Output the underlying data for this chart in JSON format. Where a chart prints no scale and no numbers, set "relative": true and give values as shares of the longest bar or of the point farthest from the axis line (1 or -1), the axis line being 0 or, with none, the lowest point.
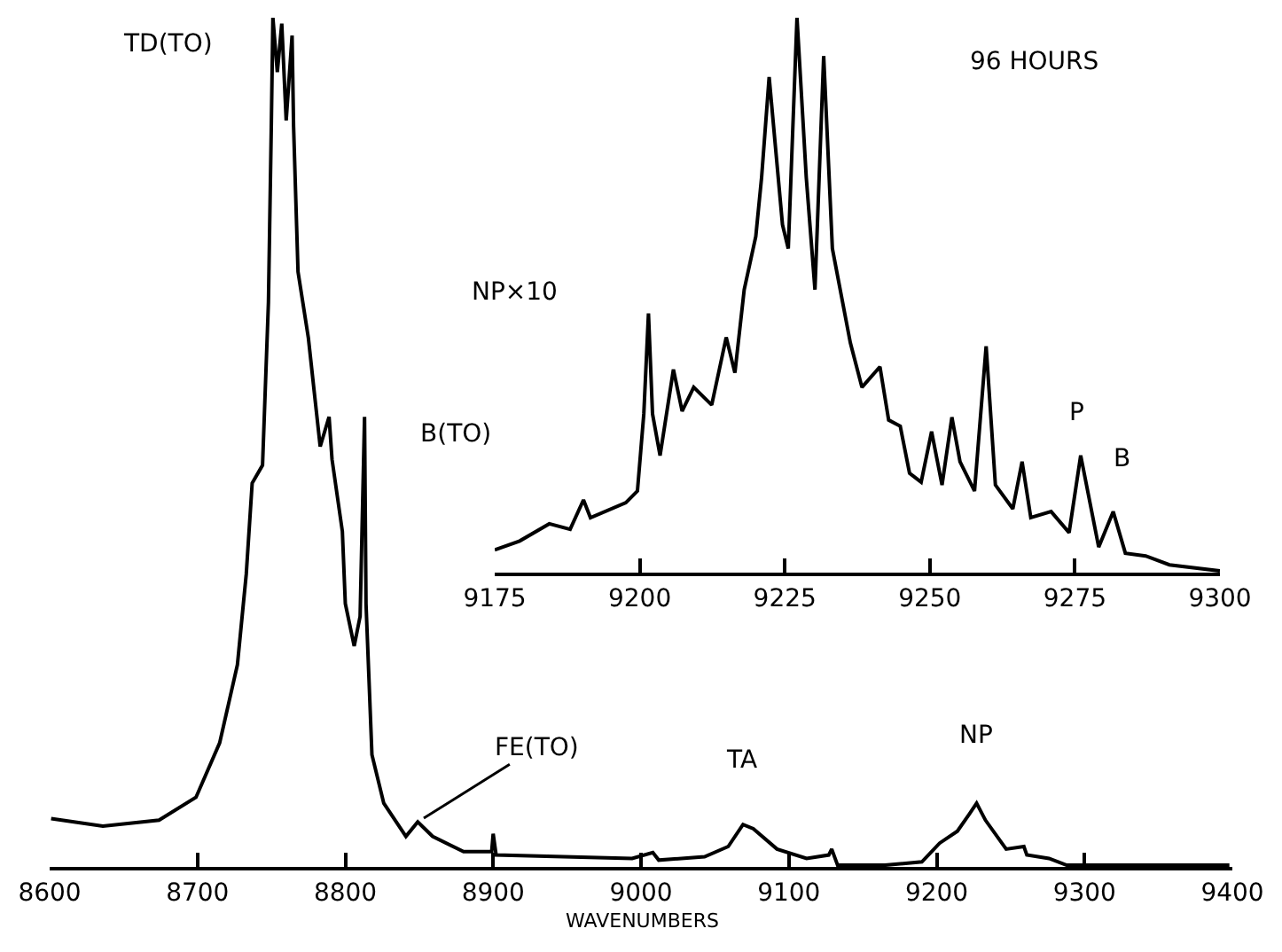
{
  "chart_data": [
    {
      "type": "line",
      "relative": true,
      "xlabel": "WAVENUMBERS",
      "xlim": [
        8600,
        9400
      ],
      "xticks": [
        8600,
        8700,
        8800,
        8900,
        9000,
        9100,
        9200,
        9300,
        9400
      ],
      "series": [
        {
          "color": "#000000",
          "x": [
            8601,
            8636,
            8674,
            8699,
            8715,
            8727,
            8733,
            8737,
            8744,
            8748,
            8750,
            8751,
            8754,
            8757,
            8760,
            8764,
            8765,
            8768,
            8775,
            8779,
            8783,
            8789,
            8791,
            8798,
            8800,
            8806,
            8810,
            8813,
            8814,
            8818,
            8826,
            8841,
            8849,
            8859,
            8880,
            8899,
            8900,
            8902,
            8994,
            9008,
            9012,
            9043,
            9059,
            9069,
            9076,
            9092,
            9112,
            9127,
            9129,
            9133,
            9165,
            9190,
            9202,
            9214,
            9222,
            9227,
            9233,
            9247,
            9259,
            9261,
            9276,
            9288,
            9398
          ],
          "values": [
            0.057,
            0.048,
            0.055,
            0.082,
            0.146,
            0.238,
            0.345,
            0.452,
            0.473,
            0.665,
            0.879,
            1.0,
            0.936,
            0.993,
            0.879,
            0.979,
            0.872,
            0.701,
            0.623,
            0.559,
            0.495,
            0.53,
            0.48,
            0.395,
            0.31,
            0.26,
            0.295,
            0.53,
            0.31,
            0.132,
            0.075,
            0.036,
            0.053,
            0.036,
            0.018,
            0.018,
            0.039,
            0.014,
            0.01,
            0.017,
            0.008,
            0.012,
            0.024,
            0.05,
            0.045,
            0.021,
            0.01,
            0.014,
            0.021,
            0.002,
            0.002,
            0.006,
            0.028,
            0.042,
            0.062,
            0.075,
            0.055,
            0.021,
            0.024,
            0.014,
            0.01,
            0.002,
            0.002
          ]
        }
      ],
      "annotations": [
        {
          "text": "TD(TO)",
          "x": 8751,
          "y": 1.0
        },
        {
          "text": "B(TO)",
          "x": 8813,
          "y": 0.53
        },
        {
          "text": "FE(TO)",
          "x": 8849,
          "y": 0.053
        },
        {
          "text": "TA",
          "x": 9070,
          "y": 0.05
        },
        {
          "text": "NP",
          "x": 9227,
          "y": 0.075
        }
      ]
    },
    {
      "type": "line",
      "relative": true,
      "title": "96 HOURS",
      "xlim": [
        9175,
        9300
      ],
      "xticks": [
        9175,
        9200,
        9225,
        9250,
        9275,
        9300
      ],
      "series": [
        {
          "color": "#000000",
          "x": [
            9175.0,
            9179.3,
            9184.4,
            9188,
            9190.3,
            9191.5,
            9197.6,
            9199.6,
            9200.7,
            9201.5,
            9202.2,
            9203.5,
            9205.8,
            9207.3,
            9209.3,
            9212.4,
            9214.9,
            9216.4,
            9218,
            9220,
            9221,
            9222.3,
            9224.6,
            9225.6,
            9227.1,
            9228.7,
            9230.2,
            9231.7,
            9233.2,
            9236.3,
            9238.3,
            9241.4,
            9242.9,
            9244.9,
            9246.5,
            9248.5,
            9250.3,
            9252.1,
            9253.8,
            9255.2,
            9257.7,
            9259.7,
            9261.3,
            9264.3,
            9265.9,
            9267.4,
            9270.9,
            9274,
            9276,
            9279.1,
            9281.6,
            9283.7,
            9287.2,
            9291.3,
            9300
          ],
          "values": [
            0.041,
            0.057,
            0.088,
            0.078,
            0.131,
            0.099,
            0.126,
            0.147,
            0.286,
            0.467,
            0.286,
            0.211,
            0.366,
            0.291,
            0.334,
            0.302,
            0.424,
            0.36,
            0.51,
            0.606,
            0.712,
            0.893,
            0.627,
            0.584,
            1.0,
            0.712,
            0.51,
            0.931,
            0.584,
            0.414,
            0.334,
            0.371,
            0.275,
            0.264,
            0.179,
            0.163,
            0.254,
            0.158,
            0.28,
            0.2,
            0.147,
            0.408,
            0.158,
            0.115,
            0.2,
            0.099,
            0.11,
            0.072,
            0.211,
            0.046,
            0.11,
            0.035,
            0.03,
            0.014,
            0.003
          ]
        }
      ],
      "annotations": [
        "NP×10",
        {
          "text": "P",
          "x": 9276,
          "y": 0.211
        },
        {
          "text": "B",
          "x": 9281.6,
          "y": 0.11
        }
      ]
    }
  ]
}
